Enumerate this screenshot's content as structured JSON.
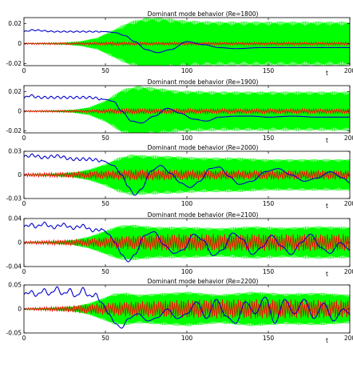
{
  "chart_data": [
    {
      "type": "line",
      "title": "Dominant mode behavior (Re=1800)",
      "xlabel": "t",
      "xlim": [
        0,
        200
      ],
      "ylim": [
        -0.022,
        0.026
      ],
      "xticks": [
        0,
        50,
        100,
        150,
        200
      ],
      "yticks": [
        -0.02,
        0,
        0.02
      ],
      "ytick_labels": [
        "-0.02",
        "0",
        "0.02"
      ],
      "series": [
        {
          "color": "#00ff00",
          "envelope": {
            "t": [
              0,
              10,
              25,
              35,
              45,
              55,
              65,
              75,
              85,
              100,
              120,
              150,
              200
            ],
            "amp": [
              0.0003,
              0.0005,
              0.001,
              0.0025,
              0.006,
              0.014,
              0.022,
              0.026,
              0.026,
              0.023,
              0.022,
              0.022,
              0.022
            ]
          }
        },
        {
          "color": "#ff0000",
          "envelope": {
            "t": [
              0,
              30,
              45,
              55,
              65,
              80,
              120,
              200
            ],
            "amp": [
              0.0008,
              0.0012,
              0.0015,
              0.0018,
              0.0016,
              0.0014,
              0.0014,
              0.0014
            ]
          }
        },
        {
          "color": "#0000cc",
          "points": {
            "t": [
              0,
              5,
              20,
              40,
              50,
              56,
              62,
              68,
              75,
              82,
              90,
              100,
              110,
              120,
              130,
              145,
              160,
              180,
              200
            ],
            "y": [
              0.012,
              0.0135,
              0.012,
              0.012,
              0.012,
              0.011,
              0.008,
              0.002,
              -0.006,
              -0.009,
              -0.006,
              0.002,
              -0.001,
              -0.004,
              -0.005,
              -0.004,
              -0.004,
              -0.004,
              -0.004
            ]
          }
        }
      ]
    },
    {
      "type": "line",
      "title": "Dominant mode behavior (Re=1900)",
      "xlabel": "t",
      "xlim": [
        0,
        200
      ],
      "ylim": [
        -0.022,
        0.026
      ],
      "xticks": [
        0,
        50,
        100,
        150,
        200
      ],
      "yticks": [
        -0.02,
        0,
        0.02
      ],
      "ytick_labels": [
        "-0.02",
        "0",
        "0.02"
      ],
      "series": [
        {
          "color": "#00ff00",
          "envelope": {
            "t": [
              0,
              15,
              30,
              40,
              50,
              60,
              70,
              80,
              95,
              120,
              150,
              200
            ],
            "amp": [
              0.0003,
              0.0006,
              0.0015,
              0.004,
              0.011,
              0.022,
              0.026,
              0.024,
              0.021,
              0.02,
              0.02,
              0.02
            ]
          }
        },
        {
          "color": "#ff0000",
          "envelope": {
            "t": [
              0,
              30,
              50,
              60,
              70,
              90,
              200
            ],
            "amp": [
              0.0008,
              0.0012,
              0.002,
              0.003,
              0.003,
              0.0025,
              0.0025
            ]
          }
        },
        {
          "color": "#0000cc",
          "points": {
            "t": [
              0,
              3,
              10,
              20,
              40,
              50,
              55,
              60,
              66,
              72,
              80,
              88,
              96,
              104,
              112,
              120,
              130,
              140,
              150,
              165,
              180,
              200
            ],
            "y": [
              0.013,
              0.016,
              0.014,
              0.014,
              0.014,
              0.012,
              0.01,
              0.0,
              -0.01,
              -0.012,
              -0.005,
              0.003,
              -0.002,
              -0.008,
              -0.01,
              -0.006,
              -0.005,
              -0.005,
              -0.006,
              -0.005,
              -0.006,
              -0.006
            ]
          }
        }
      ]
    },
    {
      "type": "line",
      "title": "Dominant mode behavior (Re=2000)",
      "xlabel": "t",
      "xlim": [
        0,
        200
      ],
      "ylim": [
        -0.03,
        0.03
      ],
      "xticks": [
        0,
        50,
        100,
        150,
        200
      ],
      "yticks": [
        -0.03,
        0,
        0.03
      ],
      "ytick_labels": [
        "-0.03",
        "0",
        "0.03"
      ],
      "series": [
        {
          "color": "#00ff00",
          "envelope": {
            "t": [
              0,
              15,
              30,
              40,
              50,
              58,
              66,
              74,
              90,
              110,
              130,
              150,
              200
            ],
            "amp": [
              0.0005,
              0.0012,
              0.003,
              0.007,
              0.014,
              0.022,
              0.026,
              0.025,
              0.024,
              0.022,
              0.022,
              0.02,
              0.02
            ]
          }
        },
        {
          "color": "#ff0000",
          "envelope": {
            "t": [
              0,
              20,
              40,
              55,
              65,
              80,
              120,
              200
            ],
            "amp": [
              0.002,
              0.003,
              0.005,
              0.006,
              0.007,
              0.007,
              0.006,
              0.006
            ]
          }
        },
        {
          "color": "#0000cc",
          "points": {
            "t": [
              0,
              5,
              12,
              20,
              30,
              40,
              48,
              55,
              60,
              64,
              68,
              72,
              78,
              84,
              90,
              96,
              102,
              108,
              114,
              120,
              126,
              132,
              140,
              148,
              156,
              164,
              172,
              180,
              188,
              196,
              200
            ],
            "y": [
              0.023,
              0.025,
              0.022,
              0.024,
              0.02,
              0.02,
              0.018,
              0.012,
              0.0,
              -0.015,
              -0.026,
              -0.018,
              0.005,
              0.012,
              0.002,
              -0.01,
              -0.016,
              -0.008,
              0.008,
              0.01,
              -0.002,
              -0.012,
              -0.008,
              0.004,
              0.008,
              0.0,
              -0.008,
              -0.004,
              0.004,
              -0.004,
              -0.01
            ]
          }
        }
      ]
    },
    {
      "type": "line",
      "title": "Dominant mode behavior (Re=2100)",
      "xlabel": "t",
      "xlim": [
        0,
        200
      ],
      "ylim": [
        -0.04,
        0.04
      ],
      "xticks": [
        0,
        50,
        100,
        150,
        200
      ],
      "yticks": [
        -0.04,
        0,
        0.04
      ],
      "ytick_labels": [
        "-0.04",
        "0",
        "0.04"
      ],
      "series": [
        {
          "color": "#00ff00",
          "envelope": {
            "t": [
              0,
              15,
              30,
              40,
              50,
              58,
              66,
              80,
              100,
              120,
              140,
              160,
              180,
              200
            ],
            "amp": [
              0.0008,
              0.0015,
              0.004,
              0.01,
              0.02,
              0.028,
              0.03,
              0.026,
              0.026,
              0.024,
              0.027,
              0.025,
              0.027,
              0.026
            ]
          }
        },
        {
          "color": "#ff0000",
          "envelope": {
            "t": [
              0,
              20,
              40,
              55,
              70,
              90,
              120,
              160,
              200
            ],
            "amp": [
              0.002,
              0.004,
              0.007,
              0.01,
              0.012,
              0.014,
              0.014,
              0.014,
              0.014
            ]
          }
        },
        {
          "color": "#0000cc",
          "points": {
            "t": [
              0,
              4,
              8,
              12,
              18,
              24,
              30,
              36,
              42,
              48,
              52,
              56,
              60,
              64,
              68,
              74,
              80,
              86,
              92,
              98,
              104,
              110,
              116,
              122,
              128,
              134,
              140,
              146,
              152,
              158,
              164,
              170,
              176,
              182,
              188,
              194,
              200
            ],
            "y": [
              0.026,
              0.03,
              0.026,
              0.032,
              0.025,
              0.03,
              0.024,
              0.028,
              0.02,
              0.022,
              0.014,
              0.0,
              -0.02,
              -0.032,
              -0.02,
              0.012,
              0.018,
              -0.004,
              -0.018,
              -0.012,
              0.014,
              0.004,
              -0.022,
              -0.012,
              0.016,
              0.006,
              -0.02,
              -0.008,
              0.012,
              -0.006,
              -0.02,
              0.0,
              0.014,
              -0.008,
              -0.018,
              0.0,
              -0.012
            ]
          }
        }
      ]
    },
    {
      "type": "line",
      "title": "Dominant mode behavior (Re=2200)",
      "xlabel": "t",
      "xlim": [
        0,
        200
      ],
      "ylim": [
        -0.05,
        0.05
      ],
      "xticks": [
        0,
        50,
        100,
        150,
        200
      ],
      "yticks": [
        -0.05,
        0,
        0.05
      ],
      "ytick_labels": [
        "-0.05",
        "0",
        "0.05"
      ],
      "series": [
        {
          "color": "#00ff00",
          "envelope": {
            "t": [
              0,
              15,
              30,
              40,
              50,
              55,
              62,
              70,
              80,
              100,
              120,
              140,
              160,
              180,
              200
            ],
            "amp": [
              0.001,
              0.002,
              0.005,
              0.012,
              0.025,
              0.032,
              0.034,
              0.03,
              0.032,
              0.036,
              0.03,
              0.036,
              0.032,
              0.034,
              0.03
            ]
          }
        },
        {
          "color": "#ff0000",
          "envelope": {
            "t": [
              0,
              20,
              40,
              55,
              70,
              90,
              120,
              160,
              200
            ],
            "amp": [
              0.002,
              0.005,
              0.01,
              0.014,
              0.016,
              0.018,
              0.02,
              0.02,
              0.018
            ]
          }
        },
        {
          "color": "#0000cc",
          "points": {
            "t": [
              0,
              4,
              8,
              12,
              16,
              20,
              24,
              28,
              32,
              36,
              40,
              44,
              48,
              52,
              56,
              60,
              64,
              70,
              76,
              82,
              88,
              94,
              100,
              106,
              112,
              118,
              124,
              130,
              136,
              142,
              148,
              154,
              160,
              166,
              172,
              178,
              184,
              190,
              196,
              200
            ],
            "y": [
              0.03,
              0.036,
              0.028,
              0.04,
              0.03,
              0.044,
              0.03,
              0.04,
              0.025,
              0.042,
              0.026,
              0.03,
              0.012,
              -0.01,
              -0.03,
              -0.04,
              -0.02,
              -0.01,
              -0.025,
              -0.018,
              0.0,
              -0.02,
              -0.01,
              0.015,
              -0.02,
              0.02,
              -0.015,
              -0.03,
              0.015,
              -0.01,
              0.025,
              -0.03,
              0.02,
              -0.01,
              0.02,
              -0.02,
              0.012,
              -0.025,
              0.0,
              -0.01
            ]
          }
        }
      ]
    }
  ]
}
